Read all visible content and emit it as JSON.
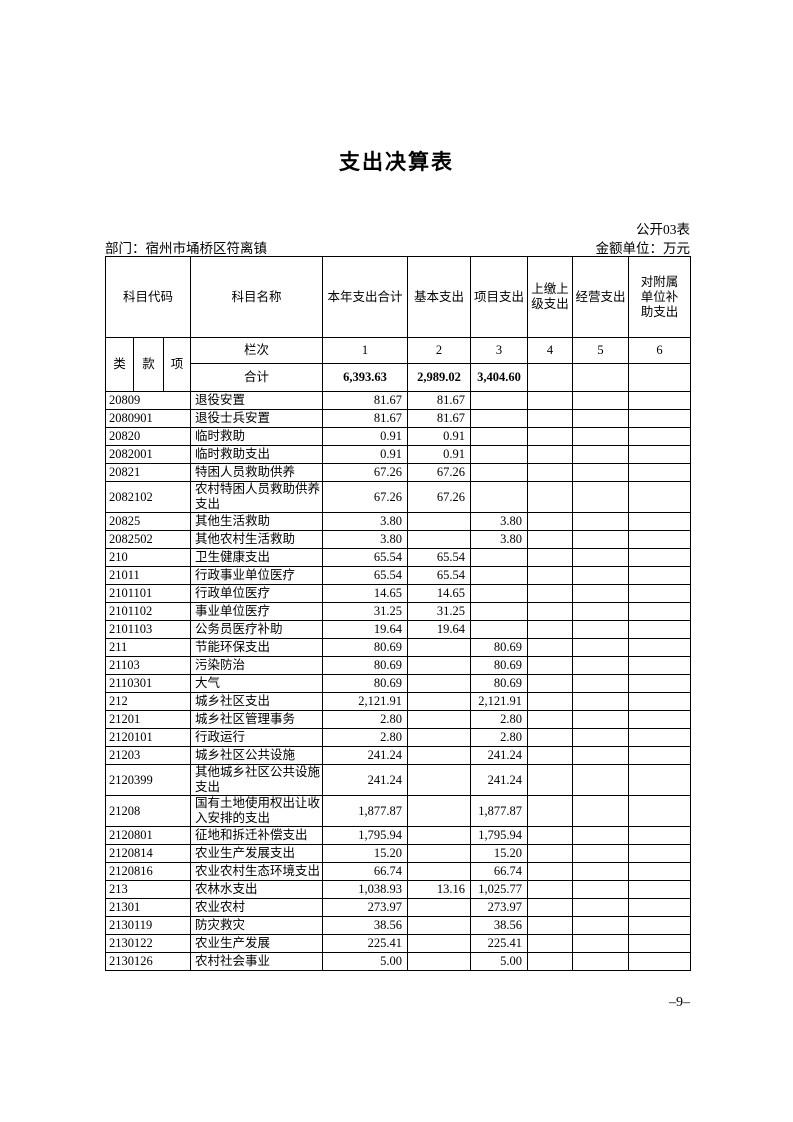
{
  "document": {
    "title": "支出决算表",
    "form_number": "公开03表",
    "department_label": "部门：宿州市埇桥区符离镇",
    "unit_label": "金额单位：万元",
    "page_number": "–9–"
  },
  "table": {
    "header": {
      "subject_code": "科目代码",
      "subject_name": "科目名称",
      "col_total": "本年支出合计",
      "col_basic": "基本支出",
      "col_project": "项目支出",
      "col_upper": "上缴上级支出",
      "col_operating": "经营支出",
      "col_subsidy": "对附属单位补助支出",
      "code_sub": [
        "类",
        "款",
        "项"
      ],
      "rank_label": "栏次",
      "rank_numbers": [
        "1",
        "2",
        "3",
        "4",
        "5",
        "6"
      ],
      "total_label": "合计",
      "total_values": [
        "6,393.63",
        "2,989.02",
        "3,404.60",
        "",
        "",
        ""
      ]
    },
    "rows": [
      {
        "code": "20809",
        "name": "退役安置",
        "values": [
          "81.67",
          "81.67",
          "",
          "",
          "",
          ""
        ]
      },
      {
        "code": "2080901",
        "name": "退役士兵安置",
        "values": [
          "81.67",
          "81.67",
          "",
          "",
          "",
          ""
        ]
      },
      {
        "code": "20820",
        "name": "临时救助",
        "values": [
          "0.91",
          "0.91",
          "",
          "",
          "",
          ""
        ]
      },
      {
        "code": "2082001",
        "name": "临时救助支出",
        "values": [
          "0.91",
          "0.91",
          "",
          "",
          "",
          ""
        ]
      },
      {
        "code": "20821",
        "name": "特困人员救助供养",
        "values": [
          "67.26",
          "67.26",
          "",
          "",
          "",
          ""
        ]
      },
      {
        "code": "2082102",
        "name": "农村特困人员救助供养支出",
        "values": [
          "67.26",
          "67.26",
          "",
          "",
          "",
          ""
        ]
      },
      {
        "code": "20825",
        "name": "其他生活救助",
        "values": [
          "3.80",
          "",
          "3.80",
          "",
          "",
          ""
        ]
      },
      {
        "code": "2082502",
        "name": "其他农村生活救助",
        "values": [
          "3.80",
          "",
          "3.80",
          "",
          "",
          ""
        ]
      },
      {
        "code": "210",
        "name": "卫生健康支出",
        "values": [
          "65.54",
          "65.54",
          "",
          "",
          "",
          ""
        ]
      },
      {
        "code": "21011",
        "name": "行政事业单位医疗",
        "values": [
          "65.54",
          "65.54",
          "",
          "",
          "",
          ""
        ]
      },
      {
        "code": "2101101",
        "name": "行政单位医疗",
        "values": [
          "14.65",
          "14.65",
          "",
          "",
          "",
          ""
        ]
      },
      {
        "code": "2101102",
        "name": "事业单位医疗",
        "values": [
          "31.25",
          "31.25",
          "",
          "",
          "",
          ""
        ]
      },
      {
        "code": "2101103",
        "name": "公务员医疗补助",
        "values": [
          "19.64",
          "19.64",
          "",
          "",
          "",
          ""
        ]
      },
      {
        "code": "211",
        "name": "节能环保支出",
        "values": [
          "80.69",
          "",
          "80.69",
          "",
          "",
          ""
        ]
      },
      {
        "code": "21103",
        "name": "污染防治",
        "values": [
          "80.69",
          "",
          "80.69",
          "",
          "",
          ""
        ]
      },
      {
        "code": "2110301",
        "name": "大气",
        "values": [
          "80.69",
          "",
          "80.69",
          "",
          "",
          ""
        ]
      },
      {
        "code": "212",
        "name": "城乡社区支出",
        "values": [
          "2,121.91",
          "",
          "2,121.91",
          "",
          "",
          ""
        ]
      },
      {
        "code": "21201",
        "name": "城乡社区管理事务",
        "values": [
          "2.80",
          "",
          "2.80",
          "",
          "",
          ""
        ]
      },
      {
        "code": "2120101",
        "name": "行政运行",
        "values": [
          "2.80",
          "",
          "2.80",
          "",
          "",
          ""
        ]
      },
      {
        "code": "21203",
        "name": "城乡社区公共设施",
        "values": [
          "241.24",
          "",
          "241.24",
          "",
          "",
          ""
        ]
      },
      {
        "code": "2120399",
        "name": "其他城乡社区公共设施支出",
        "values": [
          "241.24",
          "",
          "241.24",
          "",
          "",
          ""
        ]
      },
      {
        "code": "21208",
        "name": "国有土地使用权出让收入安排的支出",
        "values": [
          "1,877.87",
          "",
          "1,877.87",
          "",
          "",
          ""
        ]
      },
      {
        "code": "2120801",
        "name": "征地和拆迁补偿支出",
        "values": [
          "1,795.94",
          "",
          "1,795.94",
          "",
          "",
          ""
        ]
      },
      {
        "code": "2120814",
        "name": "农业生产发展支出",
        "values": [
          "15.20",
          "",
          "15.20",
          "",
          "",
          ""
        ]
      },
      {
        "code": "2120816",
        "name": "农业农村生态环境支出",
        "values": [
          "66.74",
          "",
          "66.74",
          "",
          "",
          ""
        ]
      },
      {
        "code": "213",
        "name": "农林水支出",
        "values": [
          "1,038.93",
          "13.16",
          "1,025.77",
          "",
          "",
          ""
        ]
      },
      {
        "code": "21301",
        "name": "农业农村",
        "values": [
          "273.97",
          "",
          "273.97",
          "",
          "",
          ""
        ]
      },
      {
        "code": "2130119",
        "name": "防灾救灾",
        "values": [
          "38.56",
          "",
          "38.56",
          "",
          "",
          ""
        ]
      },
      {
        "code": "2130122",
        "name": "农业生产发展",
        "values": [
          "225.41",
          "",
          "225.41",
          "",
          "",
          ""
        ]
      },
      {
        "code": "2130126",
        "name": "农村社会事业",
        "values": [
          "5.00",
          "",
          "5.00",
          "",
          "",
          ""
        ]
      }
    ]
  }
}
